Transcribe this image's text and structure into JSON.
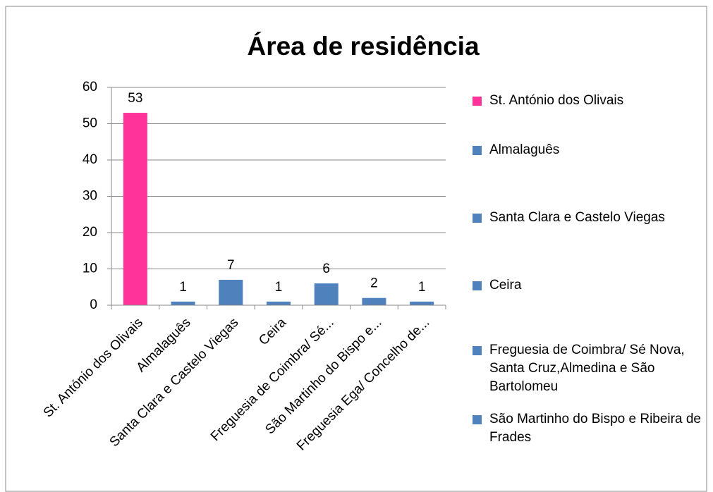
{
  "chart_data": {
    "type": "bar",
    "title": "Área de residência",
    "categories": [
      "St. António dos Olivais",
      "Almalaguês",
      "Santa Clara e Castelo Viegas",
      "Ceira",
      "Freguesia de Coimbra/ Sé...",
      "São Martinho do Bispo e...",
      "Freguesia Ega/ Concelho de..."
    ],
    "values": [
      53,
      1,
      7,
      1,
      6,
      2,
      1
    ],
    "colors": [
      "#ff3399",
      "#4f81bd",
      "#4f81bd",
      "#4f81bd",
      "#4f81bd",
      "#4f81bd",
      "#4f81bd"
    ],
    "legend": [
      "St. António dos Olivais",
      "Almalaguês",
      "Santa Clara e Castelo Viegas",
      "Ceira",
      "Freguesia de Coimbra/ Sé Nova, Santa Cruz,Almedina e São Bartolomeu",
      "São Martinho do Bispo e Ribeira de Frades"
    ],
    "ylim": [
      0,
      60
    ],
    "yticks": [
      0,
      10,
      20,
      30,
      40,
      50,
      60
    ],
    "grid": true
  }
}
